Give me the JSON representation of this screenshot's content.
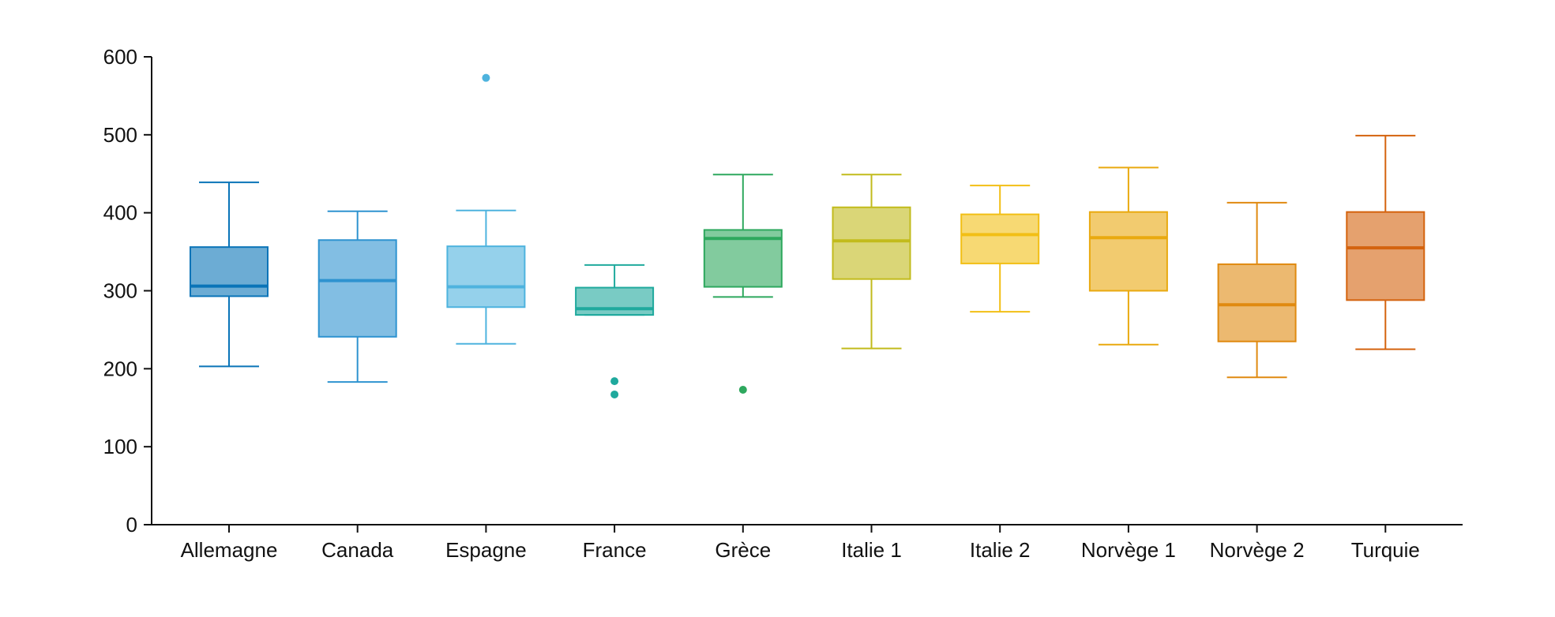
{
  "chart_data": {
    "type": "boxplot",
    "title": "",
    "xlabel": "",
    "ylabel": "",
    "ylim": [
      0,
      600
    ],
    "yticks": [
      0,
      100,
      200,
      300,
      400,
      500,
      600
    ],
    "grid": false,
    "legend": "none",
    "categories": [
      "Allemagne",
      "Canada",
      "Espagne",
      "France",
      "Grèce",
      "Italie 1",
      "Italie 2",
      "Norvège 1",
      "Norvège 2",
      "Turquie"
    ],
    "boxes": [
      {
        "category": "Allemagne",
        "whisker_low": 203,
        "q1": 293,
        "median": 306,
        "q3": 356,
        "whisker_high": 439,
        "outliers": [],
        "color": "#0a74b8"
      },
      {
        "category": "Canada",
        "whisker_low": 183,
        "q1": 241,
        "median": 313,
        "q3": 365,
        "whisker_high": 402,
        "outliers": [],
        "color": "#2e93d0"
      },
      {
        "category": "Espagne",
        "whisker_low": 232,
        "q1": 279,
        "median": 305,
        "q3": 357,
        "whisker_high": 403,
        "outliers": [
          573
        ],
        "color": "#4eb3de"
      },
      {
        "category": "France",
        "whisker_low": 269,
        "q1": 269,
        "median": 277,
        "q3": 304,
        "whisker_high": 333,
        "outliers": [
          184,
          167
        ],
        "color": "#1fa99d"
      },
      {
        "category": "Grèce",
        "whisker_low": 292,
        "q1": 305,
        "median": 367,
        "q3": 378,
        "whisker_high": 449,
        "outliers": [
          173
        ],
        "color": "#2ea85e"
      },
      {
        "category": "Italie 1",
        "whisker_low": 226,
        "q1": 315,
        "median": 364,
        "q3": 407,
        "whisker_high": 449,
        "outliers": [],
        "color": "#c2bb1c"
      },
      {
        "category": "Italie 2",
        "whisker_low": 273,
        "q1": 335,
        "median": 372,
        "q3": 398,
        "whisker_high": 435,
        "outliers": [],
        "color": "#f2bf15"
      },
      {
        "category": "Norvège 1",
        "whisker_low": 231,
        "q1": 300,
        "median": 368,
        "q3": 401,
        "whisker_high": 458,
        "outliers": [],
        "color": "#e9a90f"
      },
      {
        "category": "Norvège 2",
        "whisker_low": 189,
        "q1": 235,
        "median": 282,
        "q3": 334,
        "whisker_high": 413,
        "outliers": [],
        "color": "#e08a10"
      },
      {
        "category": "Turquie",
        "whisker_low": 225,
        "q1": 288,
        "median": 355,
        "q3": 401,
        "whisker_high": 499,
        "outliers": [],
        "color": "#d4630e"
      }
    ]
  }
}
